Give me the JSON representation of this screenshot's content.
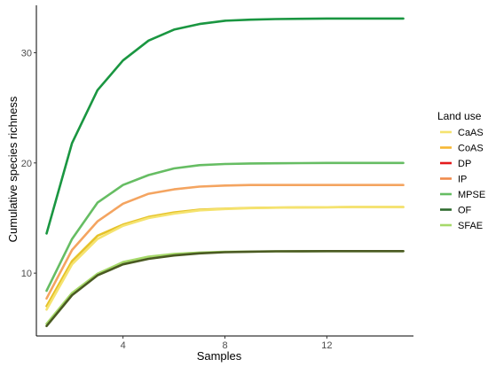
{
  "chart_data": {
    "type": "line",
    "xlabel": "Samples",
    "ylabel": "Cumulative species richness",
    "xlim": [
      0.6,
      15.4
    ],
    "ylim": [
      4.3,
      34.3
    ],
    "xticks": [
      4,
      8,
      12
    ],
    "yticks": [
      10,
      20,
      30
    ],
    "grid": false,
    "legend": {
      "title": "Land use",
      "placement": "right",
      "entries": [
        "CaAS",
        "CoAS",
        "DP",
        "IP",
        "MPSE",
        "OF",
        "SFAE"
      ]
    },
    "x": [
      1,
      2,
      3,
      4,
      5,
      6,
      7,
      8,
      9,
      10,
      11,
      12,
      13,
      14,
      15
    ],
    "series": [
      {
        "name": "OF",
        "color": "#1a9641",
        "values": [
          13.6,
          21.8,
          26.6,
          29.3,
          31.1,
          32.1,
          32.6,
          32.9,
          33.0,
          33.05,
          33.08,
          33.1,
          33.1,
          33.1,
          33.1
        ]
      },
      {
        "name": "MPSE",
        "color": "#66bd63",
        "values": [
          8.4,
          13.1,
          16.4,
          18.0,
          18.9,
          19.5,
          19.8,
          19.9,
          19.95,
          19.97,
          19.98,
          20.0,
          20.0,
          20.0,
          20.0
        ]
      },
      {
        "name": "IP",
        "color": "#f4a460",
        "values": [
          7.7,
          12.1,
          14.7,
          16.3,
          17.2,
          17.6,
          17.85,
          17.95,
          18.0,
          18.0,
          18.0,
          18.0,
          18.0,
          18.0,
          18.0
        ]
      },
      {
        "name": "CoAS",
        "color": "#e6c229",
        "values": [
          7.0,
          11.1,
          13.4,
          14.4,
          15.1,
          15.5,
          15.75,
          15.85,
          15.92,
          15.95,
          15.97,
          15.98,
          16.0,
          16.0,
          16.0
        ]
      },
      {
        "name": "CaAS",
        "color": "#f5e36f",
        "values": [
          6.7,
          10.8,
          13.1,
          14.3,
          15.0,
          15.4,
          15.7,
          15.82,
          15.9,
          15.94,
          15.97,
          15.98,
          16.0,
          16.0,
          16.0
        ]
      },
      {
        "name": "SFAE",
        "color": "#a6d96a",
        "values": [
          5.4,
          8.2,
          9.95,
          11.0,
          11.5,
          11.75,
          11.87,
          11.93,
          11.96,
          11.98,
          11.99,
          12.0,
          12.0,
          12.0,
          12.0
        ]
      },
      {
        "name": "DP",
        "color": "#4a5a22",
        "values": [
          5.2,
          8.0,
          9.8,
          10.8,
          11.3,
          11.6,
          11.8,
          11.9,
          11.95,
          11.98,
          11.99,
          12.0,
          12.0,
          12.0,
          12.0
        ]
      }
    ],
    "legend_colors": [
      "#f5e36f",
      "#f7b733",
      "#e41a1c",
      "#f08a4b",
      "#66bd63",
      "#2e6b2e",
      "#a6d96a"
    ]
  }
}
